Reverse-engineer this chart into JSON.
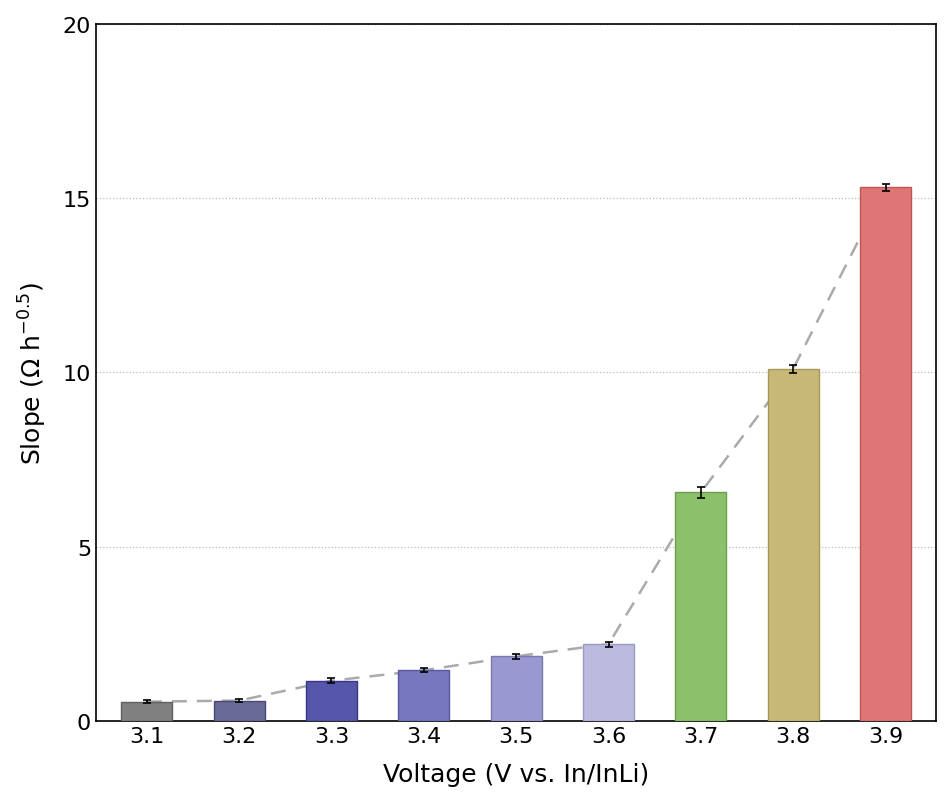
{
  "categories": [
    "3.1",
    "3.2",
    "3.3",
    "3.4",
    "3.5",
    "3.6",
    "3.7",
    "3.8",
    "3.9"
  ],
  "values": [
    0.55,
    0.58,
    1.15,
    1.45,
    1.85,
    2.2,
    6.55,
    10.1,
    15.3
  ],
  "errors": [
    0.05,
    0.05,
    0.07,
    0.06,
    0.07,
    0.07,
    0.15,
    0.12,
    0.1
  ],
  "bar_colors": [
    "#808080",
    "#696996",
    "#5555aa",
    "#7777c0",
    "#9999d0",
    "#bbbbdf",
    "#8dc06b",
    "#c8b878",
    "#e07575"
  ],
  "bar_edgecolors": [
    "#606060",
    "#494976",
    "#35358a",
    "#5757a0",
    "#7979b0",
    "#9b9bbf",
    "#6da04b",
    "#a89858",
    "#c05555"
  ],
  "dashed_line_color": "#aaaaaa",
  "xlabel": "Voltage (V vs. In/InLi)",
  "ylim": [
    0,
    20
  ],
  "yticks": [
    0,
    5,
    10,
    15,
    20
  ],
  "background_color": "#ffffff",
  "grid_color": "#bbbbbb",
  "xlabel_fontsize": 18,
  "ylabel_fontsize": 18,
  "tick_fontsize": 16,
  "figure_width": 9.53,
  "figure_height": 8.04,
  "dpi": 100
}
